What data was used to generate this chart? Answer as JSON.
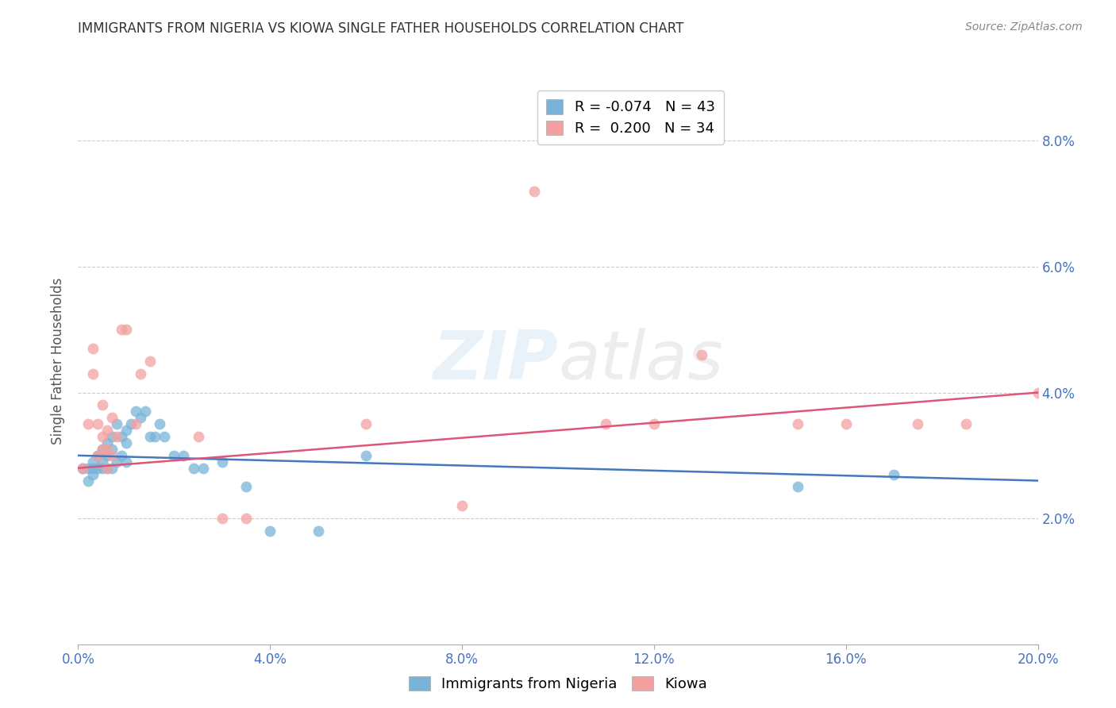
{
  "title": "IMMIGRANTS FROM NIGERIA VS KIOWA SINGLE FATHER HOUSEHOLDS CORRELATION CHART",
  "source": "Source: ZipAtlas.com",
  "ylabel_label": "Single Father Households",
  "xlim": [
    0.0,
    0.2
  ],
  "ylim": [
    0.0,
    0.09
  ],
  "xticks": [
    0.0,
    0.04,
    0.08,
    0.12,
    0.16,
    0.2
  ],
  "yticks": [
    0.02,
    0.04,
    0.06,
    0.08
  ],
  "xtick_labels": [
    "0.0%",
    "4.0%",
    "8.0%",
    "12.0%",
    "16.0%",
    "20.0%"
  ],
  "ytick_labels": [
    "2.0%",
    "4.0%",
    "6.0%",
    "8.0%"
  ],
  "blue_color": "#7ab3d8",
  "pink_color": "#f4a0a0",
  "blue_line_color": "#4477bb",
  "pink_line_color": "#dd5577",
  "legend_blue_r": "-0.074",
  "legend_blue_n": "43",
  "legend_pink_r": "0.200",
  "legend_pink_n": "34",
  "watermark_zip": "ZIP",
  "watermark_atlas": "atlas",
  "title_color": "#333333",
  "axis_label_color": "#4472c4",
  "blue_scatter_x": [
    0.001,
    0.002,
    0.002,
    0.003,
    0.003,
    0.003,
    0.004,
    0.004,
    0.005,
    0.005,
    0.005,
    0.006,
    0.006,
    0.006,
    0.007,
    0.007,
    0.007,
    0.008,
    0.008,
    0.009,
    0.009,
    0.01,
    0.01,
    0.01,
    0.011,
    0.012,
    0.013,
    0.014,
    0.015,
    0.016,
    0.017,
    0.018,
    0.02,
    0.022,
    0.024,
    0.026,
    0.03,
    0.035,
    0.04,
    0.05,
    0.06,
    0.15,
    0.17
  ],
  "blue_scatter_y": [
    0.028,
    0.028,
    0.026,
    0.029,
    0.028,
    0.027,
    0.03,
    0.028,
    0.031,
    0.029,
    0.028,
    0.032,
    0.03,
    0.028,
    0.033,
    0.031,
    0.028,
    0.035,
    0.029,
    0.033,
    0.03,
    0.034,
    0.032,
    0.029,
    0.035,
    0.037,
    0.036,
    0.037,
    0.033,
    0.033,
    0.035,
    0.033,
    0.03,
    0.03,
    0.028,
    0.028,
    0.029,
    0.025,
    0.018,
    0.018,
    0.03,
    0.025,
    0.027
  ],
  "pink_scatter_x": [
    0.001,
    0.002,
    0.003,
    0.003,
    0.004,
    0.004,
    0.005,
    0.005,
    0.005,
    0.006,
    0.006,
    0.006,
    0.007,
    0.007,
    0.008,
    0.009,
    0.01,
    0.012,
    0.013,
    0.015,
    0.025,
    0.03,
    0.035,
    0.06,
    0.08,
    0.095,
    0.11,
    0.12,
    0.13,
    0.15,
    0.16,
    0.175,
    0.185,
    0.2
  ],
  "pink_scatter_y": [
    0.028,
    0.035,
    0.047,
    0.043,
    0.035,
    0.03,
    0.038,
    0.033,
    0.031,
    0.034,
    0.031,
    0.028,
    0.036,
    0.03,
    0.033,
    0.05,
    0.05,
    0.035,
    0.043,
    0.045,
    0.033,
    0.02,
    0.02,
    0.035,
    0.022,
    0.072,
    0.035,
    0.035,
    0.046,
    0.035,
    0.035,
    0.035,
    0.035,
    0.04
  ],
  "blue_trend_x": [
    0.0,
    0.2
  ],
  "blue_trend_y": [
    0.03,
    0.026
  ],
  "pink_trend_x": [
    0.0,
    0.2
  ],
  "pink_trend_y": [
    0.028,
    0.04
  ]
}
